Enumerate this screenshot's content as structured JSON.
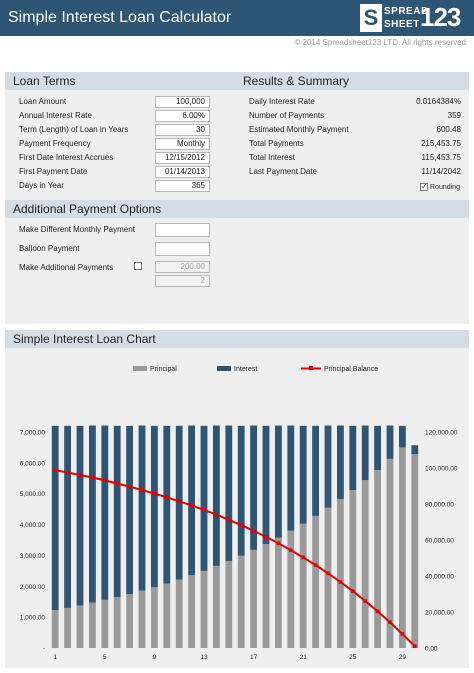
{
  "header": {
    "title": "Simple Interest Loan Calculator",
    "logo_word1": "SPREAD",
    "logo_word2": "SHEET",
    "logo_number": "123",
    "copyright": "© 2014 Spreadsheet123 LTD. All rights reserved"
  },
  "loan_terms": {
    "title": "Loan Terms",
    "rows": [
      {
        "label": "Loan Amount",
        "value": "100,000"
      },
      {
        "label": "Annual Interest Rate",
        "value": "6.00%"
      },
      {
        "label": "Term (Length) of Loan in Years",
        "value": "30"
      },
      {
        "label": "Payment Frequency",
        "value": "Monthly"
      },
      {
        "label": "First Date Interest Accrues",
        "value": "12/15/2012"
      },
      {
        "label": "First Payment Date",
        "value": "01/14/2013"
      },
      {
        "label": "Days in Year",
        "value": "365"
      }
    ]
  },
  "results": {
    "title": "Results & Summary",
    "rows": [
      {
        "label": "Daily Interest Rate",
        "value": "0.0164384%"
      },
      {
        "label": "Number of Payments",
        "value": "359"
      },
      {
        "label": "Estimated Monthly Payment",
        "value": "600.48"
      },
      {
        "label": "Total Payments",
        "value": "215,453.75"
      },
      {
        "label": "Total Interest",
        "value": "115,453.75"
      },
      {
        "label": "Last Payment Date",
        "value": "11/14/2042"
      }
    ],
    "rounding_label": "Rounding",
    "rounding_checked": true
  },
  "additional": {
    "title": "Additional Payment Options",
    "monthly_label": "Make Different Monthly Payment",
    "monthly_value": "",
    "balloon_label": "Balloon Payment",
    "balloon_value": "",
    "extra_label": "Make Additional Payments",
    "extra_checked": false,
    "extra_amount": "200.00",
    "extra_every": "2"
  },
  "chart_section": {
    "title": "Simple Interest Loan Chart"
  },
  "chart_data": {
    "type": "bar",
    "legend": [
      "Principal",
      "Interest",
      "Principal Balance"
    ],
    "legend_position": "top",
    "colors": {
      "principal": "#9a9a9a",
      "interest": "#2f5574",
      "balance": "#e00000"
    },
    "x": [
      1,
      2,
      3,
      4,
      5,
      6,
      7,
      8,
      9,
      10,
      11,
      12,
      13,
      14,
      15,
      16,
      17,
      18,
      19,
      20,
      21,
      22,
      23,
      24,
      25,
      26,
      27,
      28,
      29,
      30
    ],
    "x_tick_labels": [
      "1",
      "5",
      "9",
      "13",
      "17",
      "21",
      "25",
      "29"
    ],
    "x_tick_values": [
      1,
      5,
      9,
      13,
      17,
      21,
      25,
      29
    ],
    "principal": [
      1230,
      1300,
      1380,
      1470,
      1560,
      1650,
      1750,
      1860,
      1970,
      2090,
      2220,
      2360,
      2500,
      2660,
      2820,
      2990,
      3180,
      3370,
      3580,
      3800,
      4030,
      4280,
      4550,
      4830,
      5120,
      5440,
      5770,
      6130,
      6500,
      6280
    ],
    "interest": [
      5970,
      5900,
      5820,
      5740,
      5650,
      5550,
      5450,
      5350,
      5230,
      5110,
      4980,
      4850,
      4700,
      4550,
      4390,
      4210,
      4030,
      3830,
      3630,
      3410,
      3170,
      2920,
      2660,
      2380,
      2080,
      1770,
      1430,
      1080,
      700,
      290
    ],
    "balance": [
      98700,
      97500,
      96100,
      94700,
      93100,
      91400,
      89600,
      87800,
      85800,
      83700,
      81500,
      79200,
      76700,
      74100,
      71200,
      68300,
      65100,
      61700,
      58200,
      54400,
      50300,
      46100,
      41500,
      36700,
      31600,
      26100,
      20400,
      14300,
      7800,
      1000
    ],
    "y_left": {
      "min": 0,
      "max": 7000,
      "ticks": [
        0,
        1000,
        2000,
        3000,
        4000,
        5000,
        6000,
        7000
      ],
      "tick_labels": [
        "-",
        "1,000.00",
        "2,000.00",
        "3,000.00",
        "4,000.00",
        "5,000.00",
        "6,000.00",
        "7,000.00"
      ]
    },
    "y_right": {
      "min": 0,
      "max": 120000,
      "ticks": [
        0,
        20000,
        40000,
        60000,
        80000,
        100000,
        120000
      ],
      "tick_labels": [
        "0.00",
        "20,000.00",
        "40,000.00",
        "60,000.00",
        "80,000.00",
        "100,000.00",
        "120,000.00"
      ]
    },
    "grid": false
  }
}
